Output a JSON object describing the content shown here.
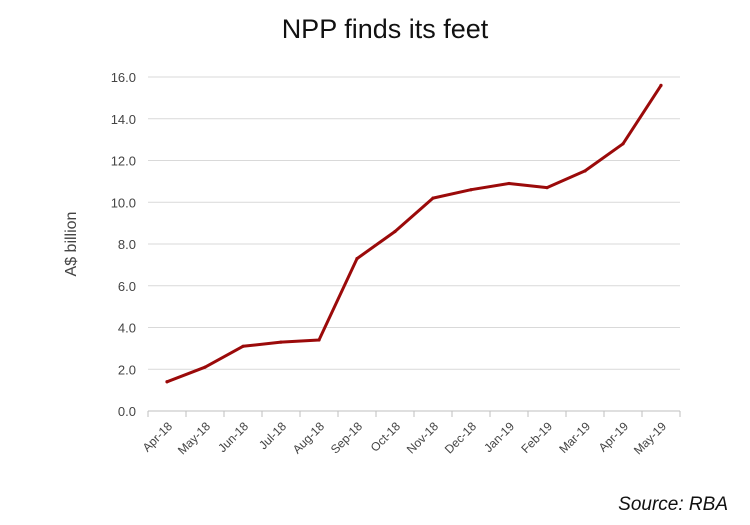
{
  "chart_data": {
    "type": "line",
    "title": "NPP finds its feet",
    "xlabel": "",
    "ylabel": "A$ billion",
    "ylim": [
      0,
      16
    ],
    "yticks": [
      0,
      2,
      4,
      6,
      8,
      10,
      12,
      14,
      16
    ],
    "ytick_labels": [
      "0.0",
      "2.0",
      "4.0",
      "6.0",
      "8.0",
      "10.0",
      "12.0",
      "14.0",
      "16.0"
    ],
    "categories": [
      "Apr-18",
      "May-18",
      "Jun-18",
      "Jul-18",
      "Aug-18",
      "Sep-18",
      "Oct-18",
      "Nov-18",
      "Dec-18",
      "Jan-19",
      "Feb-19",
      "Mar-19",
      "Apr-19",
      "May-19"
    ],
    "series": [
      {
        "values": [
          1.4,
          2.1,
          3.1,
          3.3,
          3.4,
          7.3,
          8.6,
          10.2,
          10.6,
          10.9,
          10.7,
          11.5,
          12.8,
          15.6
        ],
        "color": "#9b0a0a"
      }
    ],
    "grid": true,
    "legend": "none",
    "source": "Source: RBA"
  }
}
